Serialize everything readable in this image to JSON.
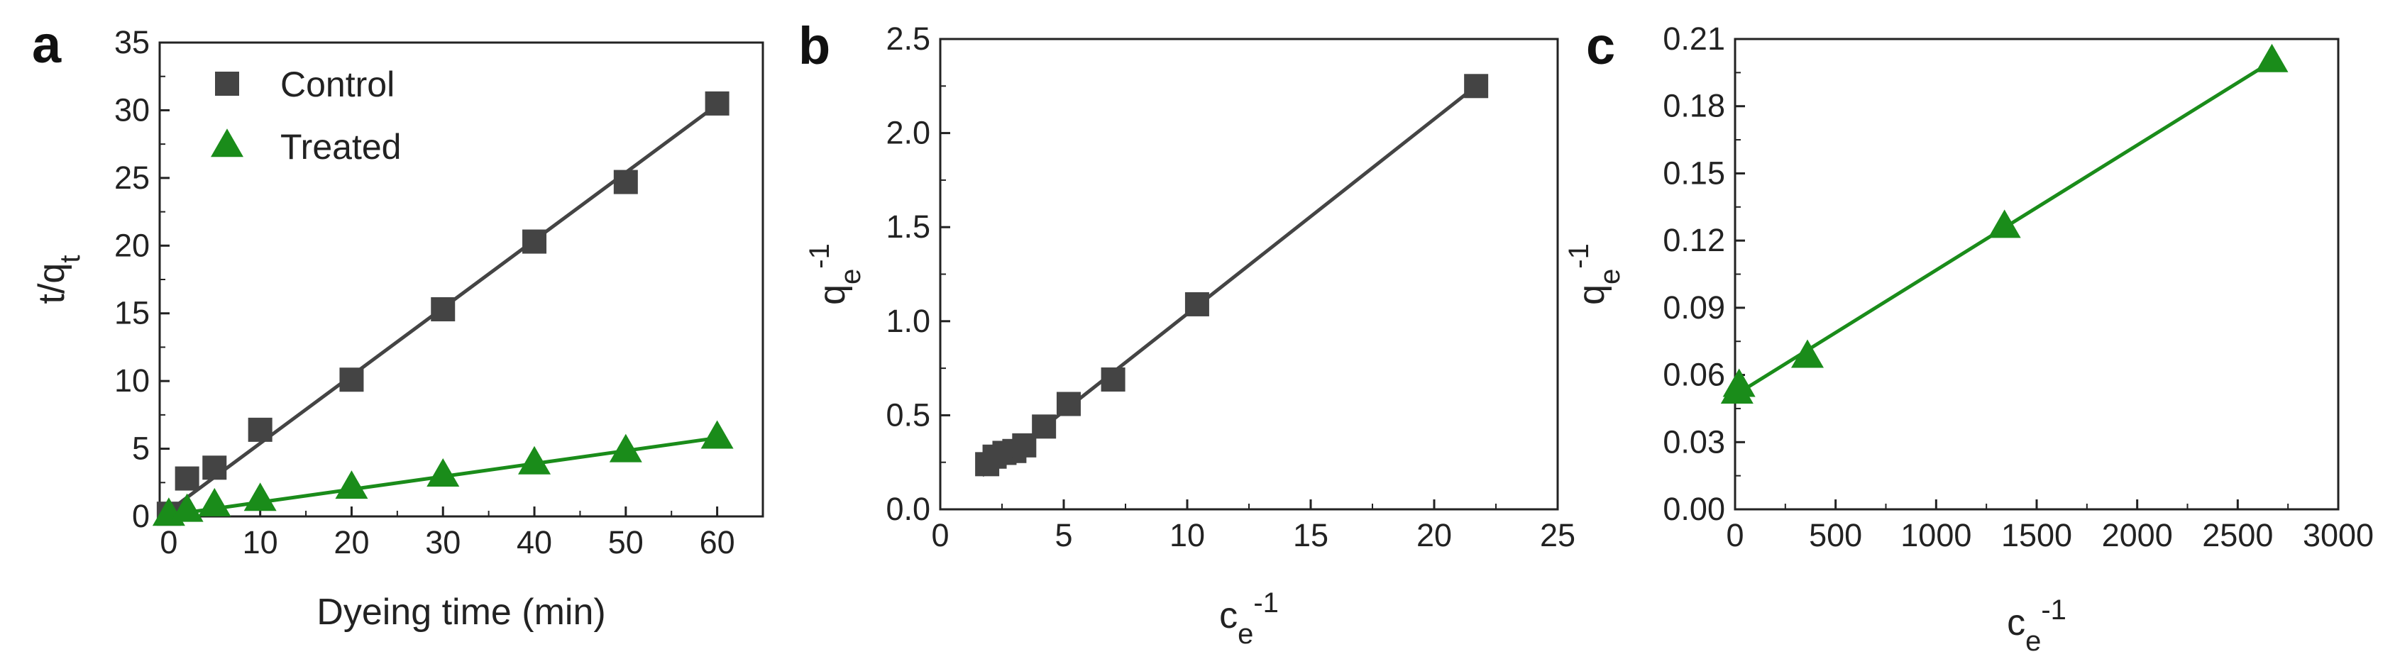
{
  "colors": {
    "control": "#444444",
    "treated": "#1a8c1a",
    "axis": "#222222"
  },
  "chart_data": [
    {
      "panel": "a",
      "type": "scatter",
      "xlabel": "Dyeing time (min)",
      "ylabel": {
        "base": "t/q",
        "sub": "t"
      },
      "xlim": [
        -1,
        65
      ],
      "ylim": [
        0,
        35
      ],
      "xticks": [
        0,
        10,
        20,
        30,
        40,
        50,
        60
      ],
      "yticks": [
        0,
        5,
        10,
        15,
        20,
        25,
        30,
        35
      ],
      "legend_position": "top-left",
      "series": [
        {
          "name": "Control",
          "marker": "square",
          "color_key": "control",
          "x": [
            0,
            2,
            5,
            10,
            20,
            30,
            40,
            50,
            60
          ],
          "y": [
            0.2,
            2.8,
            3.6,
            6.4,
            10.1,
            15.3,
            20.3,
            24.7,
            30.5
          ],
          "fit": [
            [
              0,
              0.4
            ],
            [
              60,
              30.4
            ]
          ]
        },
        {
          "name": "Treated",
          "marker": "triangle",
          "color_key": "treated",
          "x": [
            0,
            2,
            5,
            10,
            20,
            30,
            40,
            50,
            60
          ],
          "y": [
            0.1,
            0.4,
            0.8,
            1.2,
            2.1,
            3.0,
            3.9,
            4.8,
            5.8
          ],
          "fit": [
            [
              0,
              0.1
            ],
            [
              60,
              5.8
            ]
          ]
        }
      ]
    },
    {
      "panel": "b",
      "type": "scatter",
      "xlabel": {
        "base": "c",
        "sub": "e",
        "sup": "-1"
      },
      "ylabel": {
        "base": "q",
        "sub": "e",
        "sup": "-1"
      },
      "xlim": [
        0,
        25
      ],
      "ylim": [
        0,
        2.5
      ],
      "xticks": [
        0,
        5,
        10,
        15,
        20,
        25
      ],
      "yticks": [
        0.0,
        0.5,
        1.0,
        1.5,
        2.0,
        2.5
      ],
      "series": [
        {
          "marker": "square",
          "color_key": "control",
          "x": [
            1.9,
            2.2,
            2.6,
            3.0,
            3.4,
            4.2,
            5.2,
            7.0,
            10.4,
            21.7
          ],
          "y": [
            0.24,
            0.28,
            0.3,
            0.31,
            0.34,
            0.44,
            0.56,
            0.69,
            1.09,
            2.25
          ],
          "fit": [
            [
              1.7,
              0.18
            ],
            [
              21.7,
              2.25
            ]
          ]
        }
      ]
    },
    {
      "panel": "c",
      "type": "scatter",
      "xlabel": {
        "base": "c",
        "sub": "e",
        "sup": "-1"
      },
      "ylabel": {
        "base": "q",
        "sub": "e",
        "sup": "-1"
      },
      "xlim": [
        0,
        3000
      ],
      "ylim": [
        0,
        0.21
      ],
      "xticks": [
        0,
        500,
        1000,
        1500,
        2000,
        2500,
        3000
      ],
      "yticks": [
        0.0,
        0.03,
        0.06,
        0.09,
        0.12,
        0.15,
        0.18,
        0.21
      ],
      "series": [
        {
          "marker": "triangle",
          "color_key": "treated",
          "x": [
            10,
            20,
            360,
            1340,
            2670
          ],
          "y": [
            0.052,
            0.055,
            0.068,
            0.126,
            0.2
          ],
          "fit": [
            [
              0,
              0.051
            ],
            [
              2670,
              0.2
            ]
          ]
        }
      ]
    }
  ],
  "tick_format": {
    "a": {
      "x": 0,
      "y": 0
    },
    "b": {
      "x": 0,
      "y": 1
    },
    "c": {
      "x": 0,
      "y": 2
    }
  }
}
